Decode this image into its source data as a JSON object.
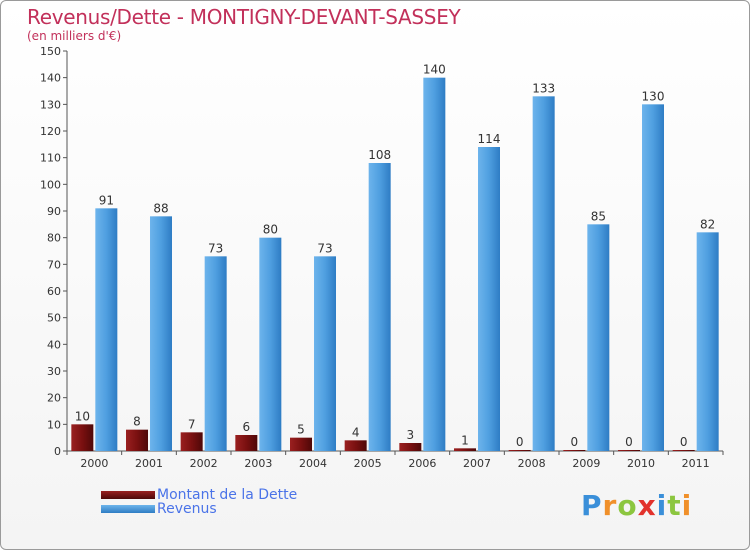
{
  "title": "Revenus/Dette - MONTIGNY-DEVANT-SASSEY",
  "subtitle": "(en milliers d'€)",
  "logo": {
    "letters": [
      "P",
      "r",
      "o",
      "x",
      "i",
      "t",
      "i"
    ],
    "colors": [
      "#3a8fd9",
      "#f0902a",
      "#8cc63f",
      "#e2322c",
      "#3a8fd9",
      "#8cc63f",
      "#f0902a"
    ]
  },
  "legend": {
    "debt_label": "Montant de la Dette",
    "revenue_label": "Revenus"
  },
  "colors": {
    "debt": "#7a1010",
    "revenue": "#4f9fe0",
    "title": "#c2305a",
    "legend_text": "#4a73e8"
  },
  "chart_data": {
    "type": "bar",
    "title": "Revenus/Dette - MONTIGNY-DEVANT-SASSEY",
    "subtitle": "(en milliers d'€)",
    "categories": [
      "2000",
      "2001",
      "2002",
      "2003",
      "2004",
      "2005",
      "2006",
      "2007",
      "2008",
      "2009",
      "2010",
      "2011"
    ],
    "series": [
      {
        "name": "Montant de la Dette",
        "values": [
          10,
          8,
          7,
          6,
          5,
          4,
          3,
          1,
          0,
          0,
          0,
          0
        ]
      },
      {
        "name": "Revenus",
        "values": [
          91,
          88,
          73,
          80,
          73,
          108,
          140,
          114,
          133,
          85,
          130,
          82
        ]
      }
    ],
    "ylim": [
      0,
      150
    ],
    "yticks": [
      0,
      10,
      20,
      30,
      40,
      50,
      60,
      70,
      80,
      90,
      100,
      110,
      120,
      130,
      140,
      150
    ],
    "grid": false,
    "legend_position": "bottom-left"
  }
}
